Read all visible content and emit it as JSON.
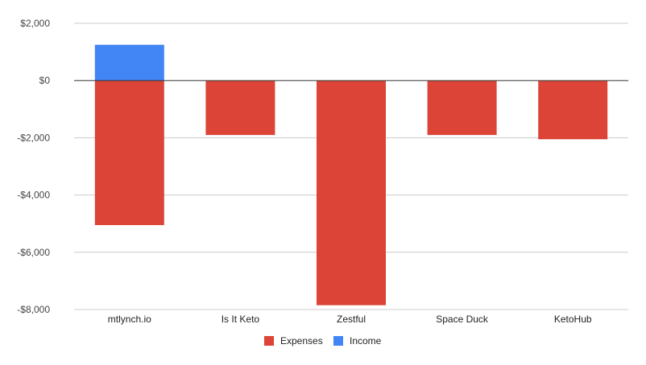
{
  "chart_data": {
    "type": "bar",
    "stacked": true,
    "categories": [
      "mtlynch.io",
      "Is It Keto",
      "Zestful",
      "Space Duck",
      "KetoHub"
    ],
    "series": [
      {
        "name": "Expenses",
        "color": "#db4437",
        "values": [
          -5050,
          -1900,
          -7850,
          -1900,
          -2050
        ]
      },
      {
        "name": "Income",
        "color": "#4285f4",
        "values": [
          1250,
          0,
          0,
          0,
          0
        ]
      }
    ],
    "ylim": [
      -8000,
      2000
    ],
    "yticks": [
      2000,
      0,
      -2000,
      -4000,
      -6000,
      -8000
    ],
    "ytick_labels": [
      "$2,000",
      "$0",
      "-$2,000",
      "-$4,000",
      "-$6,000",
      "-$8,000"
    ],
    "grid": true,
    "legend": "bottom",
    "title": "",
    "xlabel": "",
    "ylabel": ""
  }
}
